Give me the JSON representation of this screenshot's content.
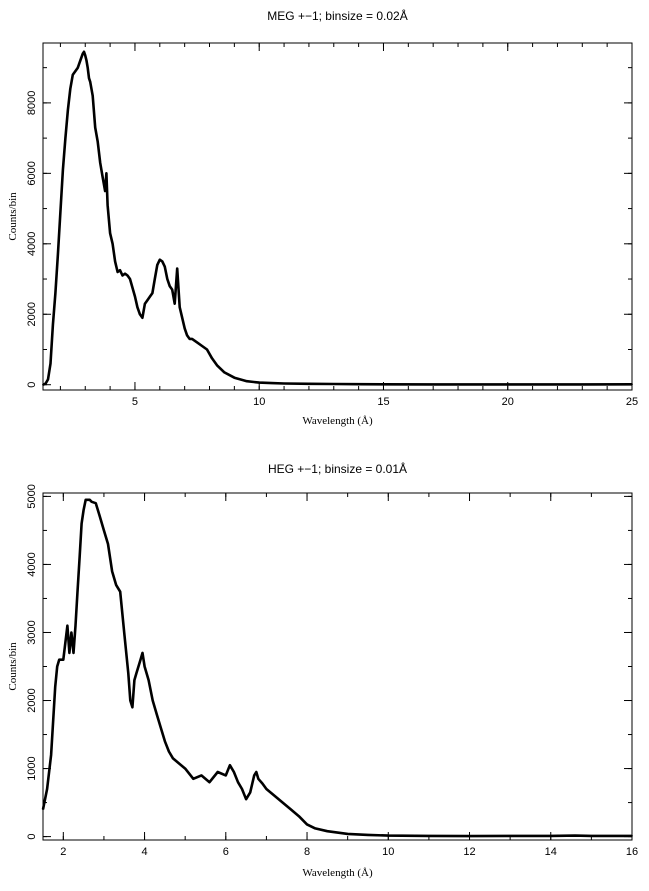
{
  "chart_data": [
    {
      "type": "line",
      "title": "MEG +−1; binsize = 0.02Å",
      "xlabel": "Wavelength (Å)",
      "ylabel": "Counts/bin",
      "xlim": [
        1.3,
        25
      ],
      "ylim": [
        -150,
        9700
      ],
      "xticks": [
        5,
        10,
        15,
        20,
        25
      ],
      "yticks": [
        0,
        2000,
        4000,
        6000,
        8000
      ],
      "grid": false,
      "series": [
        {
          "x": [
            1.3,
            1.4,
            1.5,
            1.6,
            1.7,
            1.8,
            1.9,
            2.0,
            2.1,
            2.2,
            2.3,
            2.4,
            2.5,
            2.6,
            2.7,
            2.8,
            2.9,
            2.95,
            3.0,
            3.05,
            3.1,
            3.15,
            3.2,
            3.3,
            3.4,
            3.5,
            3.6,
            3.7,
            3.8,
            3.85,
            3.9,
            4.0,
            4.1,
            4.2,
            4.3,
            4.4,
            4.5,
            4.6,
            4.7,
            4.8,
            5.0,
            5.1,
            5.2,
            5.3,
            5.4,
            5.5,
            5.6,
            5.7,
            5.8,
            5.9,
            6.0,
            6.1,
            6.2,
            6.3,
            6.4,
            6.5,
            6.6,
            6.7,
            6.8,
            6.9,
            7.0,
            7.1,
            7.2,
            7.3,
            7.5,
            7.7,
            7.9,
            8.1,
            8.3,
            8.6,
            9.0,
            9.5,
            10.0,
            10.5,
            11.0,
            12.0,
            13.0,
            14.0,
            15.0,
            17.0,
            19.0,
            21.0,
            23.0,
            25.0
          ],
          "y": [
            0,
            30,
            150,
            600,
            1700,
            2600,
            3700,
            4900,
            6100,
            7000,
            7800,
            8400,
            8800,
            8900,
            9000,
            9200,
            9400,
            9450,
            9350,
            9200,
            9000,
            8700,
            8600,
            8200,
            7300,
            6900,
            6300,
            5900,
            5500,
            6000,
            5100,
            4300,
            4000,
            3500,
            3200,
            3250,
            3100,
            3150,
            3100,
            3000,
            2500,
            2200,
            2000,
            1900,
            2300,
            2400,
            2500,
            2600,
            3000,
            3400,
            3550,
            3500,
            3350,
            3000,
            2800,
            2700,
            2300,
            3300,
            2200,
            1900,
            1600,
            1400,
            1300,
            1300,
            1200,
            1100,
            1000,
            750,
            550,
            350,
            200,
            100,
            60,
            45,
            35,
            25,
            20,
            15,
            12,
            10,
            8,
            10,
            10,
            12
          ]
        }
      ]
    },
    {
      "type": "line",
      "title": "HEG +−1; binsize = 0.01Å",
      "xlabel": "Wavelength (Å)",
      "ylabel": "Counts/bin",
      "xlim": [
        1.5,
        16
      ],
      "ylim": [
        -50,
        5050
      ],
      "xticks": [
        2,
        4,
        6,
        8,
        10,
        12,
        14,
        16
      ],
      "yticks": [
        0,
        1000,
        2000,
        3000,
        4000,
        5000
      ],
      "grid": false,
      "series": [
        {
          "x": [
            1.5,
            1.6,
            1.7,
            1.8,
            1.85,
            1.9,
            2.0,
            2.1,
            2.15,
            2.2,
            2.25,
            2.3,
            2.35,
            2.4,
            2.45,
            2.5,
            2.55,
            2.6,
            2.65,
            2.7,
            2.8,
            2.9,
            3.0,
            3.1,
            3.2,
            3.3,
            3.4,
            3.5,
            3.6,
            3.65,
            3.7,
            3.75,
            3.8,
            3.9,
            3.95,
            4.0,
            4.1,
            4.2,
            4.3,
            4.4,
            4.5,
            4.6,
            4.7,
            4.8,
            5.0,
            5.2,
            5.4,
            5.6,
            5.8,
            6.0,
            6.1,
            6.2,
            6.3,
            6.4,
            6.5,
            6.6,
            6.7,
            6.75,
            6.8,
            6.9,
            7.0,
            7.2,
            7.4,
            7.6,
            7.8,
            8.0,
            8.2,
            8.5,
            9.0,
            9.5,
            10.0,
            11.0,
            12.0,
            13.0,
            14.0,
            14.6,
            15.0,
            16.0
          ],
          "y": [
            400,
            700,
            1200,
            2200,
            2500,
            2600,
            2600,
            3100,
            2700,
            3000,
            2700,
            3100,
            3600,
            4100,
            4600,
            4800,
            4950,
            4950,
            4950,
            4920,
            4900,
            4700,
            4500,
            4300,
            3900,
            3700,
            3600,
            3000,
            2400,
            2000,
            1900,
            2300,
            2400,
            2600,
            2700,
            2500,
            2300,
            2000,
            1800,
            1600,
            1400,
            1250,
            1150,
            1100,
            1000,
            850,
            900,
            800,
            950,
            900,
            1050,
            950,
            800,
            700,
            550,
            650,
            900,
            950,
            850,
            780,
            700,
            600,
            500,
            400,
            300,
            180,
            120,
            80,
            40,
            25,
            15,
            10,
            8,
            10,
            10,
            15,
            10,
            10
          ]
        }
      ]
    }
  ]
}
